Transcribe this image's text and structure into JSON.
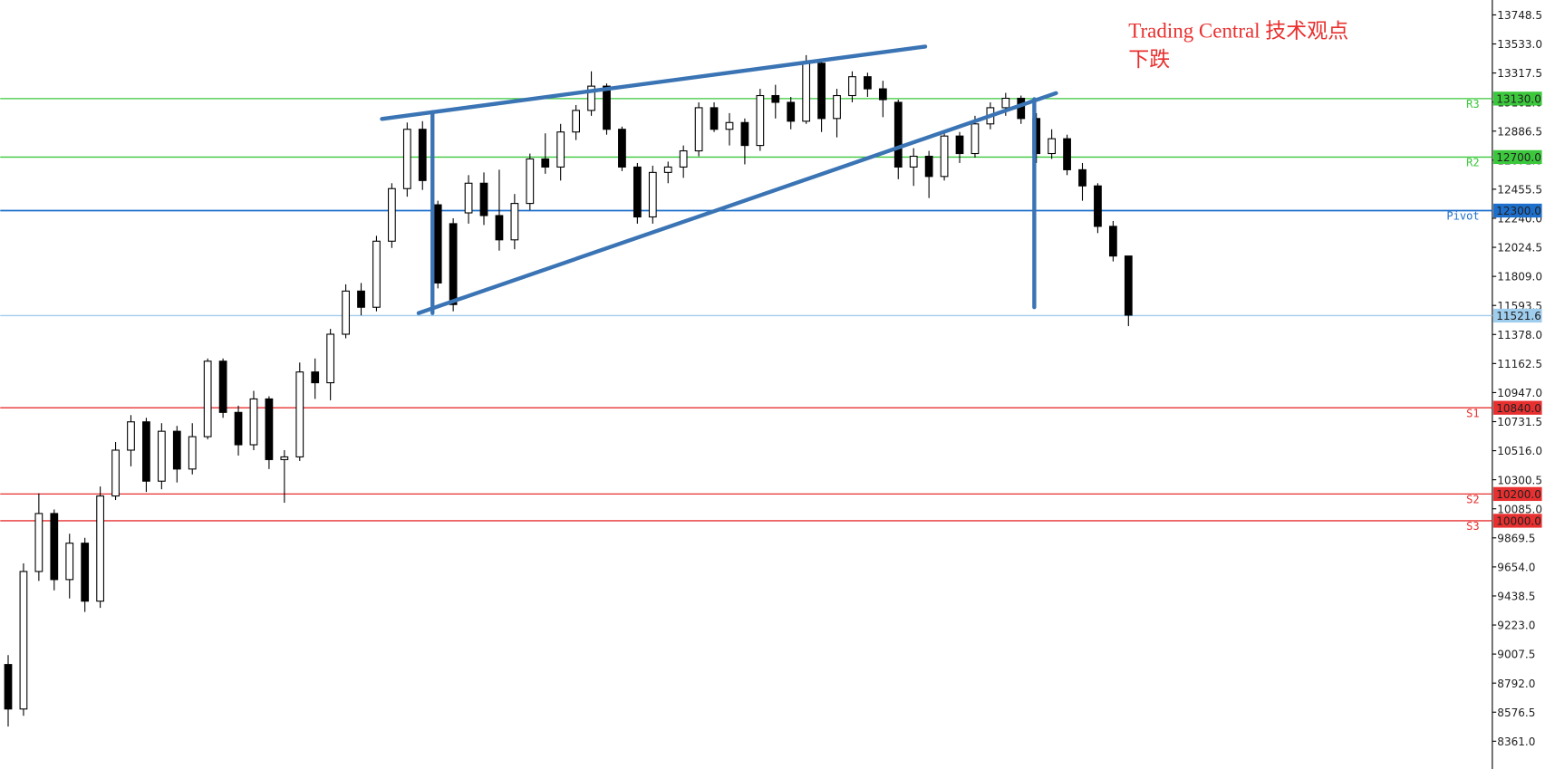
{
  "chart_data": {
    "type": "candlestick",
    "title": "Trading Central 技术观点",
    "subtitle": "下跌",
    "ylim": [
      8155,
      13859
    ],
    "yticks": [
      {
        "value": 8361,
        "label": "8361.0"
      },
      8576.5,
      {
        "value": 8792,
        "label": "8792.0"
      },
      9007.5,
      {
        "value": 9223,
        "label": "9223.0"
      },
      9438.5,
      {
        "value": 9654,
        "label": "9654.0"
      },
      9869.5,
      {
        "value": 10085,
        "label": "10085.0"
      },
      10300.5,
      {
        "value": 10516,
        "label": "10516.0"
      },
      10731.5,
      {
        "value": 10947,
        "label": "10947.0"
      },
      11162.5,
      {
        "value": 11378,
        "label": "11378.0"
      },
      11593.5,
      {
        "value": 11809,
        "label": "11809.0"
      },
      12024.5,
      {
        "value": 12240,
        "label": "12240.0"
      },
      12455.5,
      {
        "value": 12671,
        "label": "12671.0"
      },
      12886.5,
      {
        "value": 13102,
        "label": "13102.0"
      },
      13317.5,
      {
        "value": 13533,
        "label": "13533.0"
      },
      13748.5
    ],
    "grid": false,
    "up_color": "#ffffff",
    "down_color": "#000000",
    "levels": [
      {
        "name": "R3",
        "value": 13130,
        "label": "13130.0",
        "color": "#3cc83c"
      },
      {
        "name": "R2",
        "value": 12700,
        "label": "12700.0",
        "color": "#3cc83c"
      },
      {
        "name": "Pivot",
        "value": 12300,
        "label": "12300.0",
        "color": "#1e6fcc"
      },
      {
        "value": 11521.6,
        "label": "11521.6",
        "color": "#9fcdee"
      },
      {
        "name": "S1",
        "value": 10840,
        "label": "10840.0",
        "color": "#e83030"
      },
      {
        "name": "S2",
        "value": 10200,
        "label": "10200.0",
        "color": "#e83030"
      },
      {
        "name": "S3",
        "value": 10000,
        "label": "10000.0",
        "color": "#e83030"
      }
    ],
    "open": [
      8930,
      8600,
      9620,
      10050,
      9560,
      9830,
      9400,
      10180,
      10520,
      10730,
      10290,
      10660,
      10380,
      10620,
      11180,
      10800,
      10560,
      10900,
      10450,
      10470,
      11100,
      11020,
      11380,
      11700,
      11580,
      12070,
      12460,
      12900,
      12340,
      12200,
      12280,
      12500,
      12260,
      12080,
      12350,
      12680,
      12620,
      12880,
      13040,
      13220,
      12900,
      12620,
      12250,
      12580,
      12620,
      12740,
      13060,
      12900,
      12950,
      12780,
      13150,
      13100,
      12960,
      13390,
      12980,
      13150,
      13290,
      13200,
      13100,
      12620,
      12700,
      12550,
      12850,
      12720,
      12940,
      13060,
      13130,
      12980,
      12720,
      12830,
      12600,
      12480,
      12180,
      11960
    ],
    "high": [
      9000,
      9680,
      10200,
      10080,
      9900,
      9870,
      10250,
      10580,
      10780,
      10760,
      10720,
      10700,
      10720,
      11200,
      11200,
      10850,
      10960,
      10920,
      10520,
      11170,
      11200,
      11420,
      11750,
      11760,
      12110,
      12500,
      12950,
      12960,
      12370,
      12240,
      12560,
      12580,
      12600,
      12420,
      12720,
      12870,
      12940,
      13080,
      13330,
      13240,
      12920,
      12650,
      12630,
      12660,
      12780,
      13100,
      13100,
      13020,
      12980,
      13200,
      13230,
      13140,
      13450,
      13400,
      13200,
      13330,
      13320,
      13260,
      13120,
      12760,
      12740,
      12890,
      12880,
      13000,
      13100,
      13170,
      13150,
      13020,
      12900,
      12860,
      12650,
      12500,
      12220,
      11960
    ],
    "low": [
      8470,
      8550,
      9550,
      9480,
      9420,
      9320,
      9350,
      10150,
      10400,
      10210,
      10230,
      10280,
      10340,
      10600,
      10760,
      10480,
      10520,
      10380,
      10130,
      10440,
      10900,
      10890,
      11350,
      11520,
      11550,
      12020,
      12400,
      12450,
      11720,
      11550,
      12200,
      12190,
      12000,
      12010,
      12300,
      12570,
      12520,
      12820,
      13000,
      12860,
      12590,
      12200,
      12200,
      12500,
      12540,
      12700,
      12880,
      12780,
      12640,
      12740,
      12980,
      12900,
      12940,
      12880,
      12840,
      13100,
      13140,
      12990,
      12530,
      12480,
      12390,
      12520,
      12650,
      12690,
      12900,
      13000,
      12940,
      12650,
      12680,
      12560,
      12370,
      12130,
      11920,
      11440
    ],
    "close": [
      8600,
      9620,
      10050,
      9560,
      9830,
      9400,
      10180,
      10520,
      10730,
      10290,
      10660,
      10380,
      10620,
      11180,
      10800,
      10560,
      10900,
      10450,
      10470,
      11100,
      11020,
      11380,
      11700,
      11580,
      12070,
      12460,
      12900,
      12520,
      11760,
      11600,
      12500,
      12260,
      12080,
      12350,
      12680,
      12620,
      12880,
      13040,
      13220,
      12900,
      12620,
      12250,
      12580,
      12620,
      12740,
      13060,
      12900,
      12950,
      12780,
      13150,
      13100,
      12960,
      13390,
      12980,
      13150,
      13290,
      13200,
      13120,
      12620,
      12700,
      12550,
      12850,
      12720,
      12940,
      13060,
      13130,
      12980,
      12720,
      12830,
      12600,
      12480,
      12180,
      11960,
      11521.6
    ]
  }
}
